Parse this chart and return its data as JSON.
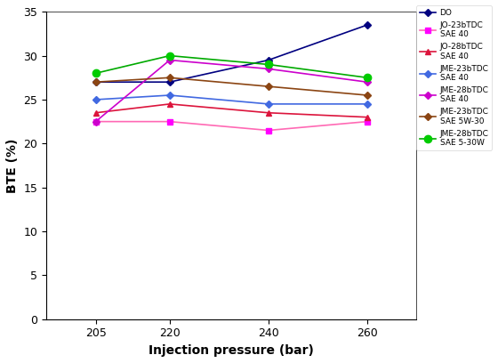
{
  "x": [
    205,
    220,
    240,
    260
  ],
  "series": [
    {
      "label": "DO",
      "lc": "#000080",
      "mc": "#000080",
      "mk": "D",
      "ms": 4,
      "y": [
        27.0,
        27.0,
        29.5,
        33.5
      ]
    },
    {
      "label": "JO-23bTDC\nSAE 40",
      "lc": "#ff69b4",
      "mc": "#ff00ff",
      "mk": "s",
      "ms": 5,
      "y": [
        22.5,
        22.5,
        21.5,
        22.5
      ]
    },
    {
      "label": "JO-28bTDC\nSAE 40",
      "lc": "#dc143c",
      "mc": "#dc143c",
      "mk": "^",
      "ms": 5,
      "y": [
        23.5,
        24.5,
        23.5,
        23.0
      ]
    },
    {
      "label": "JME-23bTDC\nSAE 40",
      "lc": "#4169e1",
      "mc": "#4169e1",
      "mk": "D",
      "ms": 4,
      "y": [
        25.0,
        25.5,
        24.5,
        24.5
      ]
    },
    {
      "label": "JME-28bTDC\nSAE 40",
      "lc": "#cc00cc",
      "mc": "#cc00cc",
      "mk": "D",
      "ms": 4,
      "y": [
        22.5,
        29.5,
        28.5,
        27.0
      ]
    },
    {
      "label": "JME-23bTDC\nSAE 5W-30",
      "lc": "#8b4513",
      "mc": "#8b4513",
      "mk": "D",
      "ms": 4,
      "y": [
        27.0,
        27.5,
        26.5,
        25.5
      ]
    },
    {
      "label": "JME-28bTDC\nSAE 5-30W",
      "lc": "#00aa00",
      "mc": "#00cc00",
      "mk": "o",
      "ms": 6,
      "y": [
        28.0,
        30.0,
        29.0,
        27.5
      ]
    }
  ],
  "xlabel": "Injection pressure (bar)",
  "ylabel": "BTE (%)",
  "xlim": [
    195,
    270
  ],
  "ylim": [
    0,
    35
  ],
  "yticks": [
    0,
    5,
    10,
    15,
    20,
    25,
    30,
    35
  ],
  "xticks": [
    205,
    220,
    240,
    260
  ],
  "legend_fontsize": 6.5,
  "axis_label_fontsize": 10,
  "tick_fontsize": 9,
  "figwidth": 5.6,
  "figheight": 4.08,
  "dpi": 100
}
